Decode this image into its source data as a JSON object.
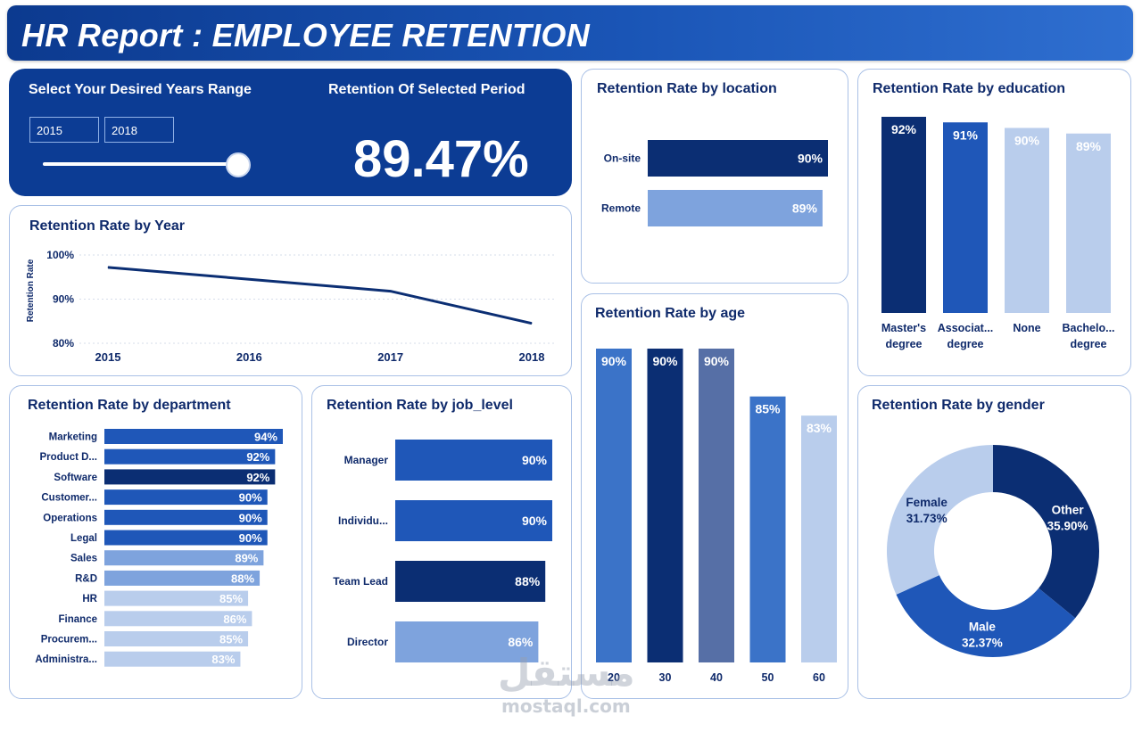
{
  "header": {
    "title": "HR Report : EMPLOYEE RETENTION"
  },
  "selector": {
    "range_label": "Select Your Desired Years Range",
    "start_year": "2015",
    "end_year": "2018",
    "slider_level": 1.0
  },
  "kpi": {
    "label": "Retention Of Selected Period",
    "value": "89.47%"
  },
  "watermark": {
    "text": "مستقل",
    "domain": "mostaql.com"
  },
  "colors": {
    "dark": "#0b2e73",
    "mid": "#1f57b8",
    "medium": "#3b73c8",
    "light": "#7ea3dd",
    "pale": "#b9cdec"
  },
  "chart_data": [
    {
      "id": "year",
      "type": "line",
      "title": "Retention Rate by Year",
      "ylabel": "Retention Rate",
      "x": [
        "2015",
        "2016",
        "2017",
        "2018"
      ],
      "values": [
        97.2,
        94.5,
        91.8,
        84.5
      ],
      "yticks": [
        "100%",
        "90%",
        "80%"
      ],
      "ylim": [
        80,
        100
      ]
    },
    {
      "id": "location",
      "type": "bar",
      "title": "Retention Rate by location",
      "orientation": "horizontal",
      "categories": [
        "On-site",
        "Remote"
      ],
      "values": [
        90,
        89
      ],
      "labels": [
        "90%",
        "89%"
      ]
    },
    {
      "id": "education",
      "type": "bar",
      "title": "Retention Rate by education",
      "categories": [
        [
          "Master's",
          "degree"
        ],
        [
          "Associat...",
          "degree"
        ],
        [
          "None"
        ],
        [
          "Bachelo...",
          "degree"
        ]
      ],
      "values": [
        92,
        91,
        90,
        89
      ],
      "labels": [
        "92%",
        "91%",
        "90%",
        "89%"
      ]
    },
    {
      "id": "age",
      "type": "bar",
      "title": "Retention Rate by age",
      "categories": [
        "20",
        "30",
        "40",
        "50",
        "60"
      ],
      "values": [
        90,
        90,
        90,
        85,
        83
      ],
      "labels": [
        "90%",
        "90%",
        "90%",
        "85%",
        "83%"
      ]
    },
    {
      "id": "department",
      "type": "bar",
      "title": "Retention Rate by department",
      "orientation": "horizontal",
      "categories": [
        "Marketing",
        "Product D...",
        "Software",
        "Customer...",
        "Operations",
        "Legal",
        "Sales",
        "R&D",
        "HR",
        "Finance",
        "Procurem...",
        "Administra..."
      ],
      "values": [
        94,
        92,
        92,
        90,
        90,
        90,
        89,
        88,
        85,
        86,
        85,
        83
      ],
      "labels": [
        "94%",
        "92%",
        "92%",
        "90%",
        "90%",
        "90%",
        "89%",
        "88%",
        "85%",
        "86%",
        "85%",
        "83%"
      ]
    },
    {
      "id": "job_level",
      "type": "bar",
      "title": "Retention Rate by job_level",
      "orientation": "horizontal",
      "categories": [
        "Manager",
        "Individu...",
        "Team Lead",
        "Director"
      ],
      "values": [
        90,
        90,
        88,
        86
      ],
      "labels": [
        "90%",
        "90%",
        "88%",
        "86%"
      ]
    },
    {
      "id": "gender",
      "type": "pie",
      "title": "Retention Rate by gender",
      "categories": [
        "Other",
        "Male",
        "Female"
      ],
      "values": [
        35.9,
        32.37,
        31.73
      ],
      "labels": [
        "35.90%",
        "32.37%",
        "31.73%"
      ]
    }
  ]
}
